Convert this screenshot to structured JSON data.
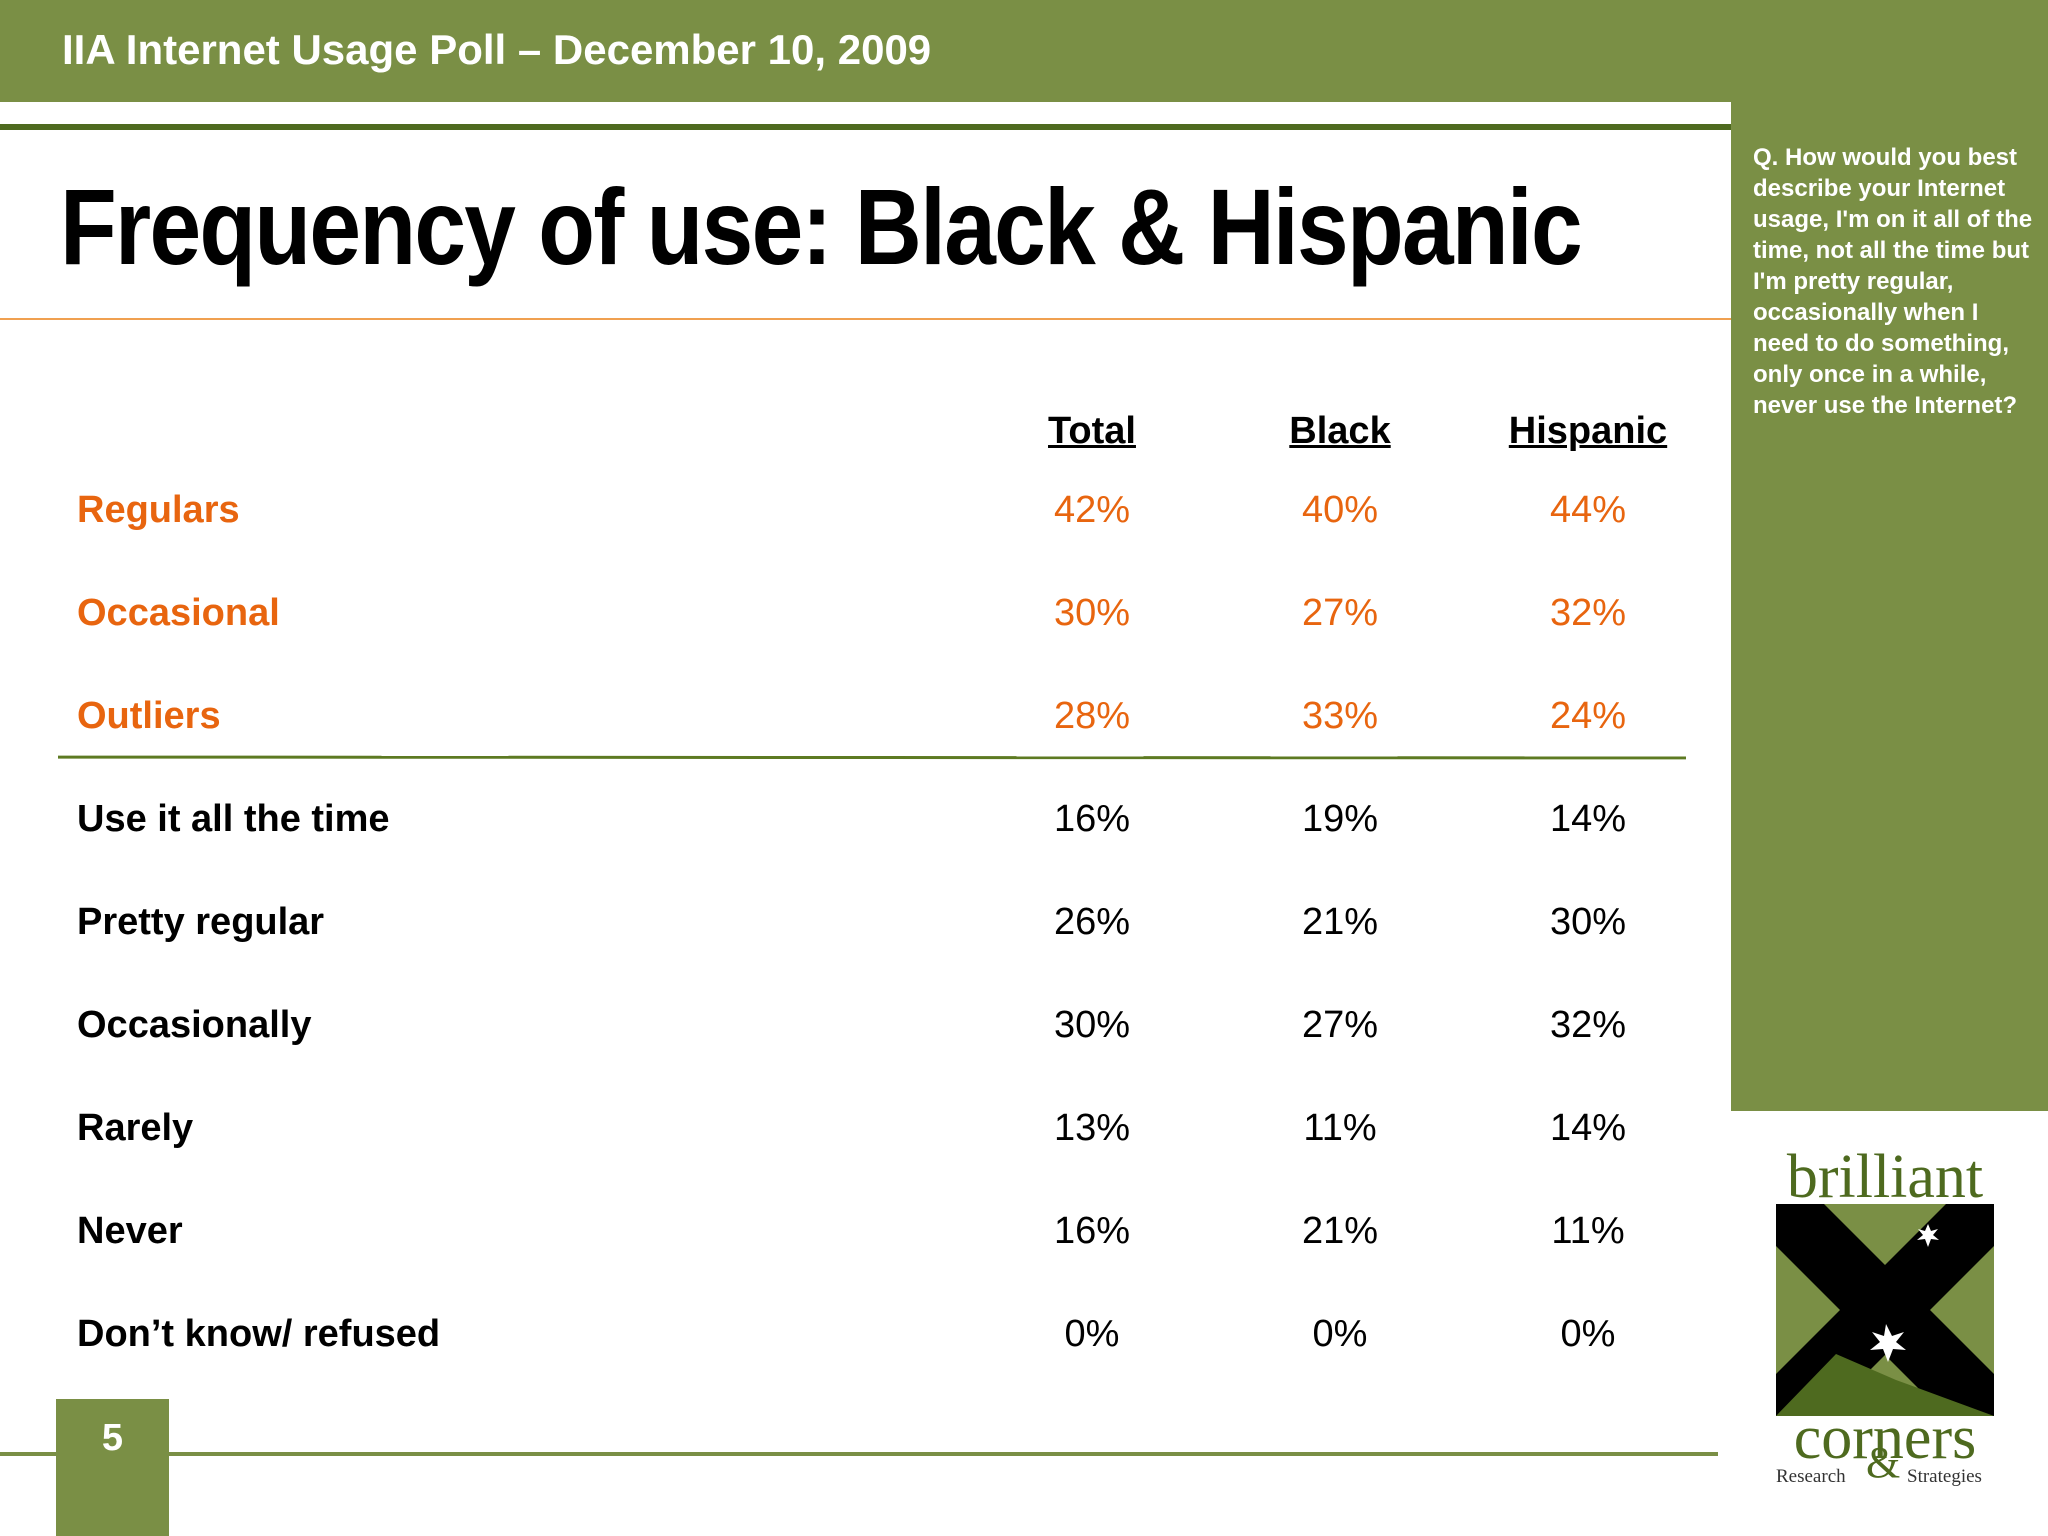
{
  "header": {
    "title": "IIA Internet Usage Poll – December 10, 2009"
  },
  "slide": {
    "title": "Frequency of use: Black & Hispanic",
    "page_number": "5"
  },
  "question": "Q. How would you best describe your Internet usage, I'm on it all of the time, not all the time but I'm pretty regular, occasionally when I need to do something, only once in a while, never use the Internet?",
  "table": {
    "columns": [
      "Total",
      "Black",
      "Hispanic"
    ],
    "summary_rows": [
      {
        "label": "Regulars",
        "values": [
          "42%",
          "40%",
          "44%"
        ]
      },
      {
        "label": "Occasional",
        "values": [
          "30%",
          "27%",
          "32%"
        ]
      },
      {
        "label": "Outliers",
        "values": [
          "28%",
          "33%",
          "24%"
        ]
      }
    ],
    "detail_rows": [
      {
        "label": "Use it all the time",
        "values": [
          "16%",
          "19%",
          "14%"
        ]
      },
      {
        "label": "Pretty regular",
        "values": [
          "26%",
          "21%",
          "30%"
        ]
      },
      {
        "label": "Occasionally",
        "values": [
          "30%",
          "27%",
          "32%"
        ]
      },
      {
        "label": "Rarely",
        "values": [
          "13%",
          "11%",
          "14%"
        ]
      },
      {
        "label": "Never",
        "values": [
          "16%",
          "21%",
          "11%"
        ]
      },
      {
        "label": "Don’t know/ refused",
        "values": [
          "0%",
          "0%",
          "0%"
        ]
      }
    ]
  },
  "logo": {
    "line1": "brilliant",
    "line2": "corners",
    "left": "Research",
    "amp": "&",
    "right": "Strategies"
  },
  "colors": {
    "green": "#7a8f45",
    "dark_green": "#4e6a1f",
    "orange": "#e8650f"
  }
}
